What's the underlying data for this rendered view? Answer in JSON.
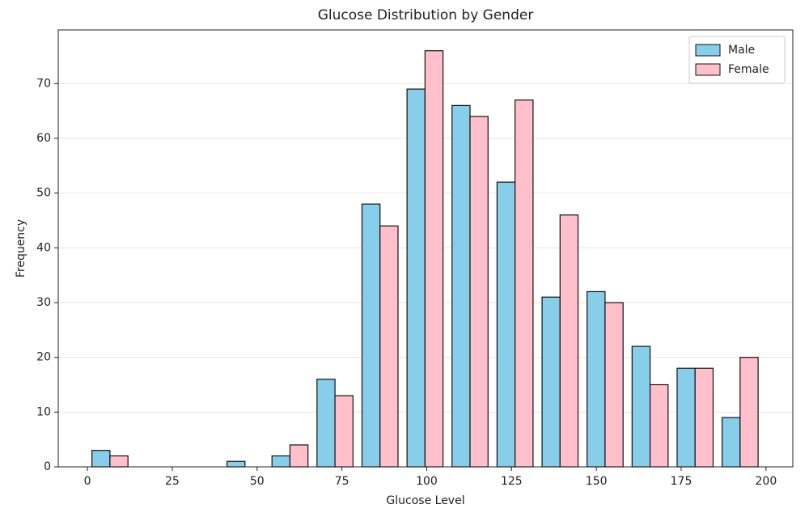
{
  "chart_data": {
    "type": "histogram",
    "title": "Glucose Distribution by Gender",
    "x_label": "Glucose Level",
    "y_label": "Frequency",
    "bins": [
      0,
      13.27,
      26.53,
      39.8,
      53.07,
      66.33,
      79.6,
      92.87,
      106.13,
      119.4,
      132.67,
      145.93,
      159.2,
      172.47,
      185.73,
      199
    ],
    "series": [
      {
        "name": "Male",
        "color": "#87ceeb",
        "values": [
          3,
          0,
          0,
          1,
          2,
          16,
          48,
          69,
          66,
          52,
          31,
          32,
          22,
          18,
          9
        ]
      },
      {
        "name": "Female",
        "color": "#ffc0cb",
        "values": [
          2,
          0,
          0,
          0,
          4,
          13,
          44,
          76,
          64,
          67,
          46,
          30,
          15,
          18,
          20
        ]
      }
    ],
    "xlim": [
      -8.6,
      207.9
    ],
    "xticks": [
      0,
      25,
      50,
      75,
      100,
      125,
      150,
      175,
      200
    ],
    "ylim": [
      0,
      79.8
    ],
    "yticks": [
      0,
      10,
      20,
      30,
      40,
      50,
      60,
      70
    ],
    "grid": true,
    "legend": "upper right",
    "edgecolor": "#111111"
  }
}
